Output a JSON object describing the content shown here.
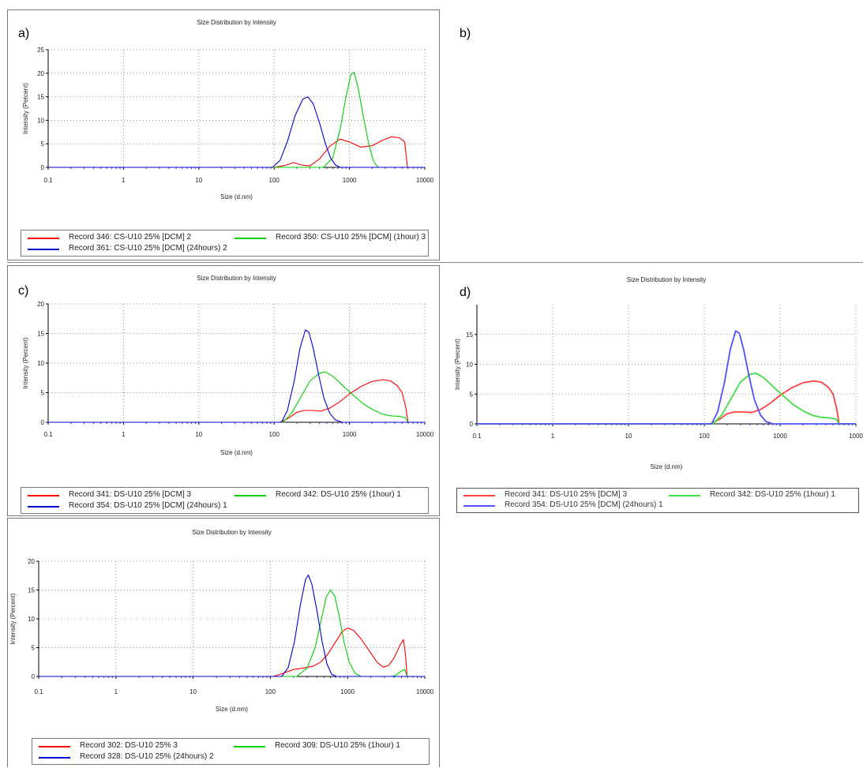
{
  "panels": [
    {
      "letter": "a)",
      "chart_data": {
        "type": "line",
        "title": "Size Distribution by Intensity",
        "xlabel": "Size (d.nm)",
        "ylabel": "Intensity (Percent)",
        "xscale": "log",
        "xlim": [
          0.1,
          10000
        ],
        "ylim": [
          0,
          25
        ],
        "xticks": [
          "0.1",
          "1",
          "10",
          "100",
          "1000",
          "10000"
        ],
        "yticks": [
          "0",
          "5",
          "10",
          "15",
          "20",
          "25"
        ],
        "grid": true,
        "legend_position": "bottom",
        "series": [
          {
            "name": "Record 346: CS-U10 25% [DCM] 2",
            "color": "#ff0000",
            "points": [
              [
                100,
                0
              ],
              [
                140,
                0.4
              ],
              [
                180,
                1.0
              ],
              [
                230,
                0.5
              ],
              [
                300,
                0.3
              ],
              [
                400,
                1.8
              ],
              [
                550,
                4.5
              ],
              [
                750,
                6.0
              ],
              [
                1000,
                5.4
              ],
              [
                1400,
                4.3
              ],
              [
                2000,
                4.6
              ],
              [
                2800,
                5.8
              ],
              [
                3600,
                6.5
              ],
              [
                4600,
                6.3
              ],
              [
                5400,
                5.4
              ],
              [
                5900,
                0
              ]
            ]
          },
          {
            "name": "Record 350: CS-U10 25% [DCM] (1hour) 3",
            "color": "#00d000",
            "points": [
              [
                450,
                0
              ],
              [
                600,
                2.0
              ],
              [
                750,
                8.0
              ],
              [
                900,
                15.0
              ],
              [
                1050,
                19.8
              ],
              [
                1150,
                20.2
              ],
              [
                1300,
                17.0
              ],
              [
                1500,
                11.5
              ],
              [
                1800,
                5.0
              ],
              [
                2100,
                1.2
              ],
              [
                2400,
                0
              ]
            ]
          },
          {
            "name": "Record 361: CS-U10 25% [DCM] (24hours) 2",
            "color": "#0000d0",
            "points": [
              [
                95,
                0
              ],
              [
                120,
                1.5
              ],
              [
                150,
                5.5
              ],
              [
                190,
                11.0
              ],
              [
                240,
                14.5
              ],
              [
                280,
                15.0
              ],
              [
                330,
                13.5
              ],
              [
                400,
                9.5
              ],
              [
                480,
                5.0
              ],
              [
                560,
                2.0
              ],
              [
                650,
                0.5
              ],
              [
                760,
                0
              ]
            ]
          }
        ]
      }
    },
    {
      "letter": "b)"
    },
    {
      "letter": "c)",
      "chart_data": {
        "type": "line",
        "title": "Size Distribution by Intensity",
        "xlabel": "Size (d.nm)",
        "ylabel": "Intensity (Percent)",
        "xscale": "log",
        "xlim": [
          0.1,
          10000
        ],
        "ylim": [
          0,
          20
        ],
        "xticks": [
          "0.1",
          "1",
          "10",
          "100",
          "1000",
          "10000"
        ],
        "yticks": [
          "0",
          "5",
          "10",
          "15",
          "20"
        ],
        "grid": true,
        "legend_position": "bottom",
        "series": [
          {
            "name": "Record 341: DS-U10 25% [DCM] 3",
            "color": "#ff0000",
            "points": [
              [
                120,
                0
              ],
              [
                160,
                0.8
              ],
              [
                200,
                1.7
              ],
              [
                250,
                2.0
              ],
              [
                330,
                2.0
              ],
              [
                420,
                1.9
              ],
              [
                550,
                2.4
              ],
              [
                750,
                3.5
              ],
              [
                1000,
                4.8
              ],
              [
                1400,
                6.0
              ],
              [
                2000,
                6.9
              ],
              [
                2800,
                7.2
              ],
              [
                3500,
                7.0
              ],
              [
                4300,
                6.2
              ],
              [
                5000,
                5.0
              ],
              [
                5600,
                2.5
              ],
              [
                6000,
                0
              ]
            ]
          },
          {
            "name": "Record 342: DS-U10 25% (1hour) 1",
            "color": "#00d000",
            "points": [
              [
                130,
                0
              ],
              [
                170,
                1.5
              ],
              [
                220,
                4.0
              ],
              [
                300,
                7.0
              ],
              [
                400,
                8.3
              ],
              [
                480,
                8.5
              ],
              [
                600,
                7.8
              ],
              [
                800,
                6.3
              ],
              [
                1100,
                4.7
              ],
              [
                1500,
                3.2
              ],
              [
                2000,
                2.2
              ],
              [
                2700,
                1.4
              ],
              [
                3500,
                1.1
              ],
              [
                4500,
                1.0
              ],
              [
                5500,
                0.8
              ],
              [
                6000,
                0
              ]
            ]
          },
          {
            "name": "Record 354: DS-U10 25% [DCM] (24hours) 1",
            "color": "#0000d0",
            "points": [
              [
                125,
                0
              ],
              [
                150,
                2.0
              ],
              [
                185,
                7.0
              ],
              [
                220,
                12.5
              ],
              [
                260,
                15.6
              ],
              [
                290,
                15.2
              ],
              [
                330,
                12.5
              ],
              [
                390,
                8.0
              ],
              [
                460,
                4.0
              ],
              [
                550,
                1.5
              ],
              [
                650,
                0.4
              ],
              [
                800,
                0
              ]
            ]
          }
        ]
      }
    },
    {
      "letter": "d)",
      "chart_data": {
        "type": "line",
        "title": "Size Distribution by Intensity",
        "xlabel": "Size (d.nm)",
        "ylabel": "Intensity (Percent)",
        "xscale": "log",
        "xlim": [
          0.1,
          10000
        ],
        "ylim": [
          0,
          20
        ],
        "xticks": [
          "0.1",
          "1",
          "10",
          "100",
          "1000",
          "1000"
        ],
        "yticks": [
          "0",
          "5",
          "10",
          "15"
        ],
        "grid": true,
        "legend_position": "bottom",
        "series": [
          {
            "name": "Record 341: DS-U10 25% [DCM] 3",
            "color": "#ff4040",
            "points": [
              [
                120,
                0
              ],
              [
                160,
                0.8
              ],
              [
                200,
                1.7
              ],
              [
                250,
                2.0
              ],
              [
                330,
                2.0
              ],
              [
                420,
                1.9
              ],
              [
                550,
                2.4
              ],
              [
                750,
                3.5
              ],
              [
                1000,
                4.8
              ],
              [
                1400,
                6.0
              ],
              [
                2000,
                6.9
              ],
              [
                2800,
                7.2
              ],
              [
                3500,
                7.0
              ],
              [
                4300,
                6.2
              ],
              [
                5000,
                5.0
              ],
              [
                5600,
                2.5
              ],
              [
                6000,
                0
              ]
            ]
          },
          {
            "name": "Record 342: DS-U10 25% (1hour) 1",
            "color": "#40e040",
            "points": [
              [
                130,
                0
              ],
              [
                170,
                1.5
              ],
              [
                220,
                4.0
              ],
              [
                300,
                7.0
              ],
              [
                400,
                8.3
              ],
              [
                480,
                8.5
              ],
              [
                600,
                7.8
              ],
              [
                800,
                6.3
              ],
              [
                1100,
                4.7
              ],
              [
                1500,
                3.2
              ],
              [
                2000,
                2.2
              ],
              [
                2700,
                1.4
              ],
              [
                3500,
                1.1
              ],
              [
                4500,
                1.0
              ],
              [
                5500,
                0.8
              ],
              [
                6000,
                0
              ]
            ]
          },
          {
            "name": "Record 354: DS-U10 25% [DCM] (24hours) 1",
            "color": "#5050ff",
            "points": [
              [
                125,
                0
              ],
              [
                150,
                2.0
              ],
              [
                185,
                7.0
              ],
              [
                220,
                12.5
              ],
              [
                260,
                15.6
              ],
              [
                290,
                15.2
              ],
              [
                330,
                12.5
              ],
              [
                390,
                8.0
              ],
              [
                460,
                4.0
              ],
              [
                550,
                1.5
              ],
              [
                650,
                0.4
              ],
              [
                800,
                0
              ]
            ]
          }
        ]
      }
    },
    {
      "letter": "",
      "chart_data": {
        "type": "line",
        "title": "Size Distribution by Intensity",
        "xlabel": "Size (d.nm)",
        "ylabel": "Intensity (Percent)",
        "xscale": "log",
        "xlim": [
          0.1,
          10000
        ],
        "ylim": [
          0,
          20
        ],
        "xticks": [
          "0.1",
          "1",
          "10",
          "100",
          "1000",
          "10000"
        ],
        "yticks": [
          "0",
          "5",
          "10",
          "15",
          "20"
        ],
        "grid": true,
        "legend_position": "bottom",
        "series": [
          {
            "name": "Record 302: DS-U10 25% 3",
            "color": "#ff0000",
            "points": [
              [
                110,
                0
              ],
              [
                150,
                0.6
              ],
              [
                200,
                1.2
              ],
              [
                280,
                1.5
              ],
              [
                360,
                1.8
              ],
              [
                450,
                2.5
              ],
              [
                550,
                3.8
              ],
              [
                700,
                6.0
              ],
              [
                850,
                7.8
              ],
              [
                1000,
                8.4
              ],
              [
                1200,
                8.0
              ],
              [
                1500,
                6.5
              ],
              [
                1900,
                4.5
              ],
              [
                2400,
                2.5
              ],
              [
                2900,
                1.6
              ],
              [
                3400,
                1.9
              ],
              [
                4000,
                3.2
              ],
              [
                4800,
                5.5
              ],
              [
                5300,
                6.4
              ],
              [
                5600,
                4.0
              ],
              [
                5900,
                0
              ]
            ]
          },
          {
            "name": "Record 309: DS-U10 25% (1hour) 1",
            "color": "#00d000",
            "points": [
              [
                220,
                0
              ],
              [
                300,
                1.5
              ],
              [
                380,
                5.0
              ],
              [
                460,
                10.0
              ],
              [
                530,
                13.8
              ],
              [
                600,
                15.0
              ],
              [
                680,
                14.0
              ],
              [
                780,
                10.5
              ],
              [
                900,
                6.0
              ],
              [
                1050,
                2.5
              ],
              [
                1250,
                0.5
              ],
              [
                1500,
                0
              ],
              [
                3800,
                0
              ],
              [
                4300,
                0.3
              ],
              [
                5000,
                1.0
              ],
              [
                5500,
                1.2
              ],
              [
                5900,
                0
              ]
            ]
          },
          {
            "name": "Record 328: DS-U10 25% (24hours) 2",
            "color": "#0000d0",
            "points": [
              [
                140,
                0
              ],
              [
                170,
                1.5
              ],
              [
                205,
                6.0
              ],
              [
                245,
                12.5
              ],
              [
                285,
                16.8
              ],
              [
                310,
                17.6
              ],
              [
                345,
                16.0
              ],
              [
                400,
                11.5
              ],
              [
                470,
                6.0
              ],
              [
                540,
                2.2
              ],
              [
                620,
                0.4
              ],
              [
                720,
                0
              ]
            ]
          }
        ]
      }
    }
  ]
}
